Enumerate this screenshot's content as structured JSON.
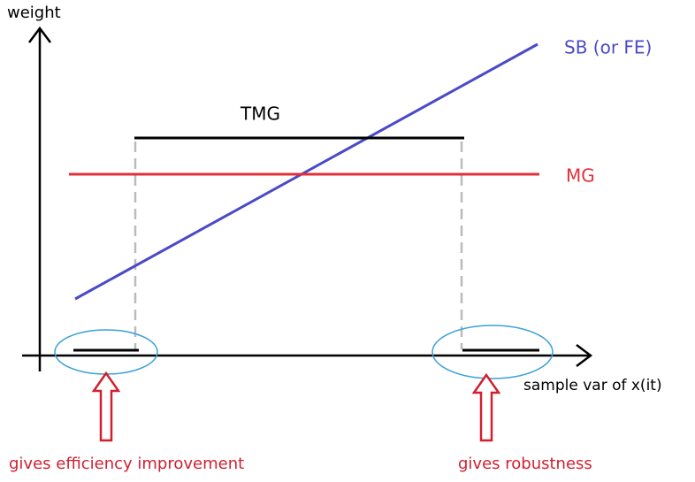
{
  "axes": {
    "y_label": "weight",
    "x_label": "sample var of x(it)"
  },
  "lines": [
    {
      "label": "SB (or FE)"
    },
    {
      "label": "MG"
    },
    {
      "label": "TMG"
    }
  ],
  "annotations": [
    {
      "text": "gives efficiency improvement"
    },
    {
      "text": "gives robustness"
    }
  ]
}
